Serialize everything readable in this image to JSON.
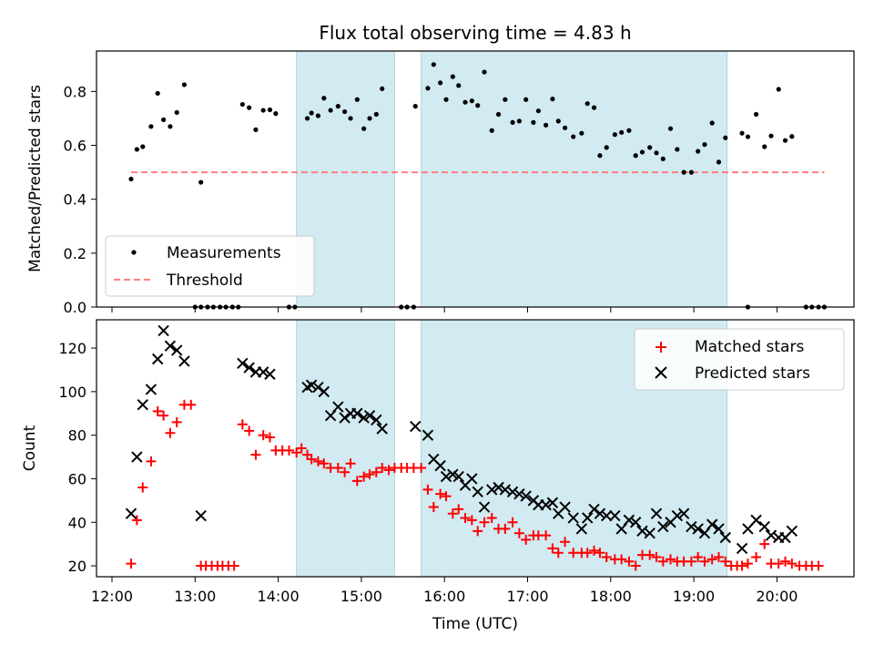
{
  "figure": {
    "title": "Flux total observing time = 4.83 h"
  },
  "colors": {
    "measurement": "#000000",
    "threshold": "#ff7f7f",
    "matched": "#ff0000",
    "predicted": "#000000",
    "shade": "#add8e6"
  },
  "chart_data": [
    {
      "type": "scatter",
      "title": "Flux total observing time = 4.83 h",
      "xlabel": "",
      "ylabel": "Matched/Predicted stars",
      "ylim": [
        0,
        0.95
      ],
      "yticks": [
        0.0,
        0.2,
        0.4,
        0.6,
        0.8
      ],
      "ytick_labels": [
        "0.0",
        "0.2",
        "0.4",
        "0.6",
        "0.8"
      ],
      "xlim_hours": [
        11.85,
        20.92
      ],
      "shaded_spans_hours": [
        [
          14.22,
          15.4
        ],
        [
          15.72,
          19.4
        ]
      ],
      "legend": {
        "position": "lower-left",
        "entries": [
          "Measurements",
          "Threshold"
        ]
      },
      "series": [
        {
          "name": "Measurements",
          "marker": "dot",
          "x_hours": [
            12.23,
            12.3,
            12.37,
            12.47,
            12.55,
            12.62,
            12.7,
            12.78,
            12.87,
            13.07,
            13.57,
            13.65,
            13.73,
            13.82,
            13.9,
            13.97,
            14.35,
            14.4,
            14.48,
            14.55,
            14.63,
            14.72,
            14.8,
            14.87,
            14.95,
            15.03,
            15.1,
            15.18,
            15.25,
            15.65,
            15.8,
            15.87,
            15.95,
            16.02,
            16.1,
            16.17,
            16.25,
            16.33,
            16.4,
            16.48,
            16.57,
            16.65,
            16.73,
            16.82,
            16.9,
            16.98,
            17.07,
            17.13,
            17.22,
            17.3,
            17.37,
            17.45,
            17.55,
            17.65,
            17.72,
            17.8,
            17.87,
            17.95,
            18.05,
            18.13,
            18.22,
            18.3,
            18.38,
            18.47,
            18.55,
            18.63,
            18.72,
            18.8,
            18.88,
            18.97,
            19.05,
            19.13,
            19.22,
            19.3,
            19.38,
            19.58,
            19.65,
            19.75,
            19.85,
            19.93,
            20.02,
            20.1,
            20.18
          ],
          "y": [
            0.475,
            0.585,
            0.595,
            0.67,
            0.793,
            0.695,
            0.67,
            0.722,
            0.825,
            0.463,
            0.752,
            0.74,
            0.658,
            0.73,
            0.732,
            0.718,
            0.7,
            0.72,
            0.71,
            0.775,
            0.73,
            0.745,
            0.725,
            0.7,
            0.77,
            0.662,
            0.7,
            0.715,
            0.81,
            0.745,
            0.812,
            0.9,
            0.832,
            0.77,
            0.855,
            0.822,
            0.76,
            0.765,
            0.748,
            0.872,
            0.655,
            0.715,
            0.77,
            0.685,
            0.69,
            0.77,
            0.685,
            0.728,
            0.675,
            0.772,
            0.69,
            0.665,
            0.632,
            0.645,
            0.755,
            0.74,
            0.562,
            0.592,
            0.64,
            0.648,
            0.655,
            0.562,
            0.575,
            0.592,
            0.572,
            0.55,
            0.662,
            0.585,
            0.5,
            0.5,
            0.578,
            0.603,
            0.683,
            0.538,
            0.628,
            0.645,
            0.632,
            0.715,
            0.595,
            0.635,
            0.808,
            0.618,
            0.633
          ],
          "zero_x_hours": [
            13.0,
            13.07,
            13.15,
            13.22,
            13.3,
            13.37,
            13.45,
            13.52,
            14.13,
            14.2,
            15.48,
            15.55,
            15.63,
            19.65,
            20.35,
            20.42,
            20.5,
            20.57
          ]
        },
        {
          "name": "Threshold",
          "marker": "dashed-line",
          "x_hours": [
            12.23,
            20.57
          ],
          "y": [
            0.5,
            0.5
          ]
        }
      ]
    },
    {
      "type": "scatter",
      "xlabel": "Time (UTC)",
      "ylabel": "Count",
      "ylim": [
        15,
        133
      ],
      "yticks": [
        20,
        40,
        60,
        80,
        100,
        120
      ],
      "ytick_labels": [
        "20",
        "40",
        "60",
        "80",
        "100",
        "120"
      ],
      "xticks_hours": [
        12,
        13,
        14,
        15,
        16,
        17,
        18,
        19,
        20
      ],
      "xtick_labels": [
        "12:00",
        "13:00",
        "14:00",
        "15:00",
        "16:00",
        "17:00",
        "18:00",
        "19:00",
        "20:00"
      ],
      "shaded_spans_hours": [
        [
          14.22,
          15.4
        ],
        [
          15.72,
          19.4
        ]
      ],
      "legend": {
        "position": "top-right",
        "entries": [
          "Matched stars",
          "Predicted stars"
        ]
      },
      "series": [
        {
          "name": "Matched stars",
          "marker": "plus",
          "x_hours": [
            12.23,
            12.3,
            12.37,
            12.47,
            12.55,
            12.62,
            12.7,
            12.78,
            12.87,
            12.95,
            13.07,
            13.13,
            13.2,
            13.27,
            13.33,
            13.4,
            13.47,
            13.57,
            13.65,
            13.73,
            13.82,
            13.9,
            13.97,
            14.05,
            14.13,
            14.22,
            14.28,
            14.35,
            14.4,
            14.48,
            14.55,
            14.63,
            14.72,
            14.8,
            14.87,
            14.95,
            15.03,
            15.1,
            15.18,
            15.25,
            15.33,
            15.4,
            15.48,
            15.55,
            15.63,
            15.72,
            15.8,
            15.87,
            15.95,
            16.02,
            16.1,
            16.17,
            16.25,
            16.33,
            16.4,
            16.48,
            16.57,
            16.65,
            16.73,
            16.82,
            16.9,
            16.98,
            17.07,
            17.13,
            17.22,
            17.3,
            17.37,
            17.45,
            17.55,
            17.65,
            17.72,
            17.8,
            17.87,
            17.95,
            18.05,
            18.13,
            18.22,
            18.3,
            18.38,
            18.47,
            18.55,
            18.63,
            18.72,
            18.8,
            18.88,
            18.97,
            19.05,
            19.13,
            19.22,
            19.3,
            19.38,
            19.45,
            19.52,
            19.58,
            19.65,
            19.75,
            19.85,
            19.93,
            20.02,
            20.1,
            20.18,
            20.27,
            20.35,
            20.42,
            20.5
          ],
          "y": [
            21,
            41,
            56,
            68,
            91,
            89,
            81,
            86,
            94,
            94,
            20,
            20,
            20,
            20,
            20,
            20,
            20,
            85,
            82,
            71,
            80,
            79,
            73,
            73,
            73,
            72,
            74,
            71,
            69,
            68,
            67,
            65,
            65,
            63,
            67,
            59,
            61,
            62,
            63,
            65,
            64,
            65,
            65,
            65,
            65,
            65,
            55,
            47,
            53,
            52,
            44,
            46,
            42,
            41,
            36,
            40,
            42,
            37,
            37,
            40,
            35,
            32,
            34,
            34,
            34,
            28,
            26,
            31,
            26,
            26,
            26,
            27,
            26,
            24,
            23,
            23,
            22,
            20,
            25,
            25,
            24,
            22,
            23,
            22,
            22,
            22,
            24,
            22,
            23,
            24,
            22,
            20,
            20,
            20,
            21,
            24,
            30,
            21,
            21,
            22,
            21,
            20,
            20,
            20,
            20
          ]
        },
        {
          "name": "Predicted stars",
          "marker": "x",
          "x_hours": [
            12.23,
            12.3,
            12.37,
            12.47,
            12.55,
            12.62,
            12.7,
            12.78,
            12.87,
            13.07,
            13.57,
            13.65,
            13.73,
            13.82,
            13.9,
            14.35,
            14.4,
            14.48,
            14.55,
            14.63,
            14.72,
            14.8,
            14.87,
            14.95,
            15.03,
            15.1,
            15.18,
            15.25,
            15.65,
            15.8,
            15.87,
            15.95,
            16.02,
            16.1,
            16.17,
            16.25,
            16.33,
            16.4,
            16.48,
            16.57,
            16.65,
            16.73,
            16.82,
            16.9,
            16.98,
            17.07,
            17.13,
            17.22,
            17.3,
            17.37,
            17.45,
            17.55,
            17.65,
            17.72,
            17.8,
            17.87,
            17.95,
            18.05,
            18.13,
            18.22,
            18.3,
            18.38,
            18.47,
            18.55,
            18.63,
            18.72,
            18.8,
            18.88,
            18.97,
            19.05,
            19.13,
            19.22,
            19.3,
            19.38,
            19.58,
            19.65,
            19.75,
            19.85,
            19.93,
            20.02,
            20.1,
            20.18
          ],
          "y": [
            44,
            70,
            94,
            101,
            115,
            128,
            121,
            119,
            114,
            43,
            113,
            111,
            109,
            109,
            108,
            102,
            103,
            102,
            100,
            89,
            93,
            88,
            90,
            90,
            88,
            89,
            87,
            83,
            84,
            80,
            69,
            66,
            61,
            62,
            61,
            57,
            60,
            54,
            47,
            55,
            56,
            55,
            54,
            53,
            52,
            50,
            48,
            48,
            49,
            44,
            47,
            42,
            37,
            42,
            46,
            44,
            43,
            43,
            37,
            41,
            40,
            36,
            35,
            44,
            38,
            40,
            43,
            44,
            38,
            37,
            35,
            39,
            37,
            33,
            28,
            37,
            41,
            38,
            34,
            33,
            33,
            36
          ]
        }
      ]
    }
  ]
}
